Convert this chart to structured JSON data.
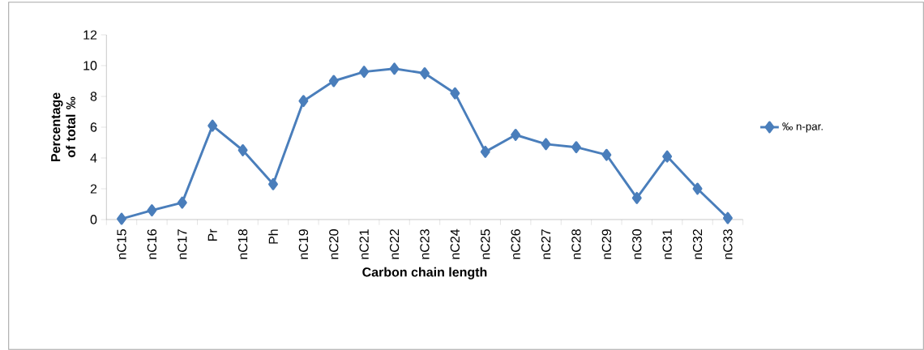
{
  "chart_data": {
    "type": "line",
    "xlabel": "Carbon chain length",
    "ylabel": "Percentage of total ‰",
    "categories": [
      "nC15",
      "nC16",
      "nC17",
      "Pr",
      "nC18",
      "Ph",
      "nC19",
      "nC20",
      "nC21",
      "nC22",
      "nC23",
      "nC24",
      "nC25",
      "nC26",
      "nC27",
      "nC28",
      "nC29",
      "nC30",
      "nC31",
      "nC32",
      "nC33"
    ],
    "series": [
      {
        "name": "‰ n-par.",
        "color": "#4a7ebb",
        "values": [
          0.05,
          0.6,
          1.1,
          6.1,
          4.5,
          2.3,
          7.7,
          9.0,
          9.6,
          9.8,
          9.5,
          8.2,
          4.4,
          5.5,
          4.9,
          4.7,
          4.2,
          1.4,
          4.1,
          2.0,
          0.1
        ]
      }
    ],
    "ylim": [
      0,
      12
    ],
    "yticks": [
      0,
      2,
      4,
      6,
      8,
      10,
      12
    ],
    "grid": false,
    "legend": "right",
    "marker": "diamond",
    "line_style": "solid"
  }
}
